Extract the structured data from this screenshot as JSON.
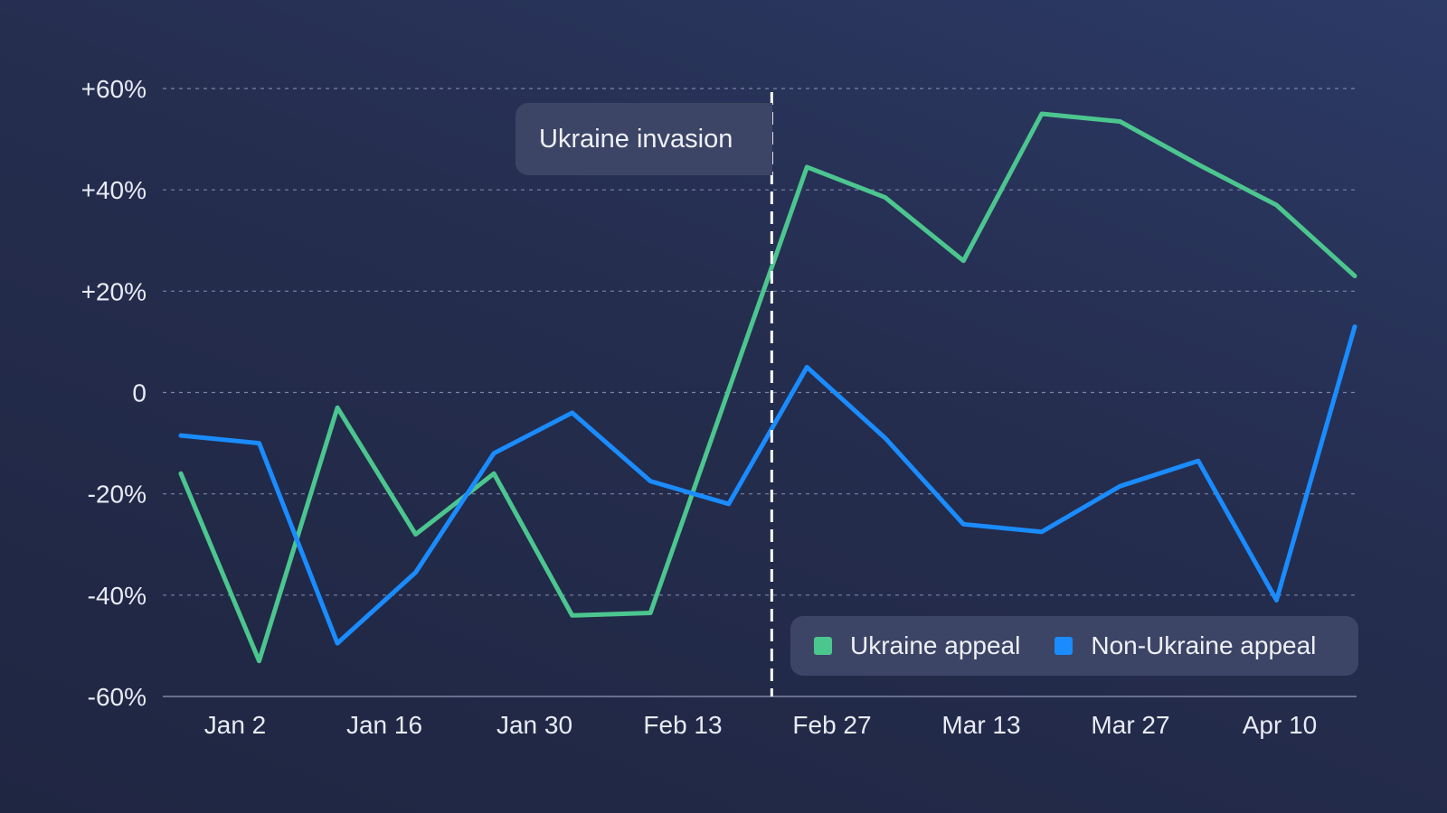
{
  "chart_data": {
    "type": "line",
    "title": "",
    "xlabel": "",
    "ylabel": "",
    "ylim": [
      -60,
      60
    ],
    "y_ticks": [
      60,
      40,
      20,
      0,
      -20,
      -40,
      -60
    ],
    "y_tick_labels": [
      "+60%",
      "+40%",
      "+20%",
      "0",
      "-20%",
      "-40%",
      "-60%"
    ],
    "x_tick_labels": [
      "Jan 2",
      "Jan 16",
      "Jan 30",
      "Feb 13",
      "Feb 27",
      "Mar 13",
      "Mar 27",
      "Apr 10"
    ],
    "x_count": 16,
    "grid": true,
    "series": [
      {
        "name": "Ukraine appeal",
        "color": "#4cc68f",
        "values": [
          -16,
          -53,
          -3,
          -28,
          -16,
          -44,
          -43.5,
          0.5,
          44.5,
          38.5,
          26,
          55,
          53.5,
          45,
          37,
          23
        ]
      },
      {
        "name": "Non-Ukraine appeal",
        "color": "#1a8cff",
        "values": [
          -8.5,
          -10,
          -49.5,
          -35.5,
          -12,
          -4,
          -17.5,
          -22,
          5,
          -9,
          -26,
          -27.5,
          -18.5,
          -13.5,
          -41,
          13
        ]
      }
    ],
    "annotation": {
      "label": "Ukraine invasion",
      "x_index": 7.55
    },
    "legend_placement": "bottom-right"
  }
}
